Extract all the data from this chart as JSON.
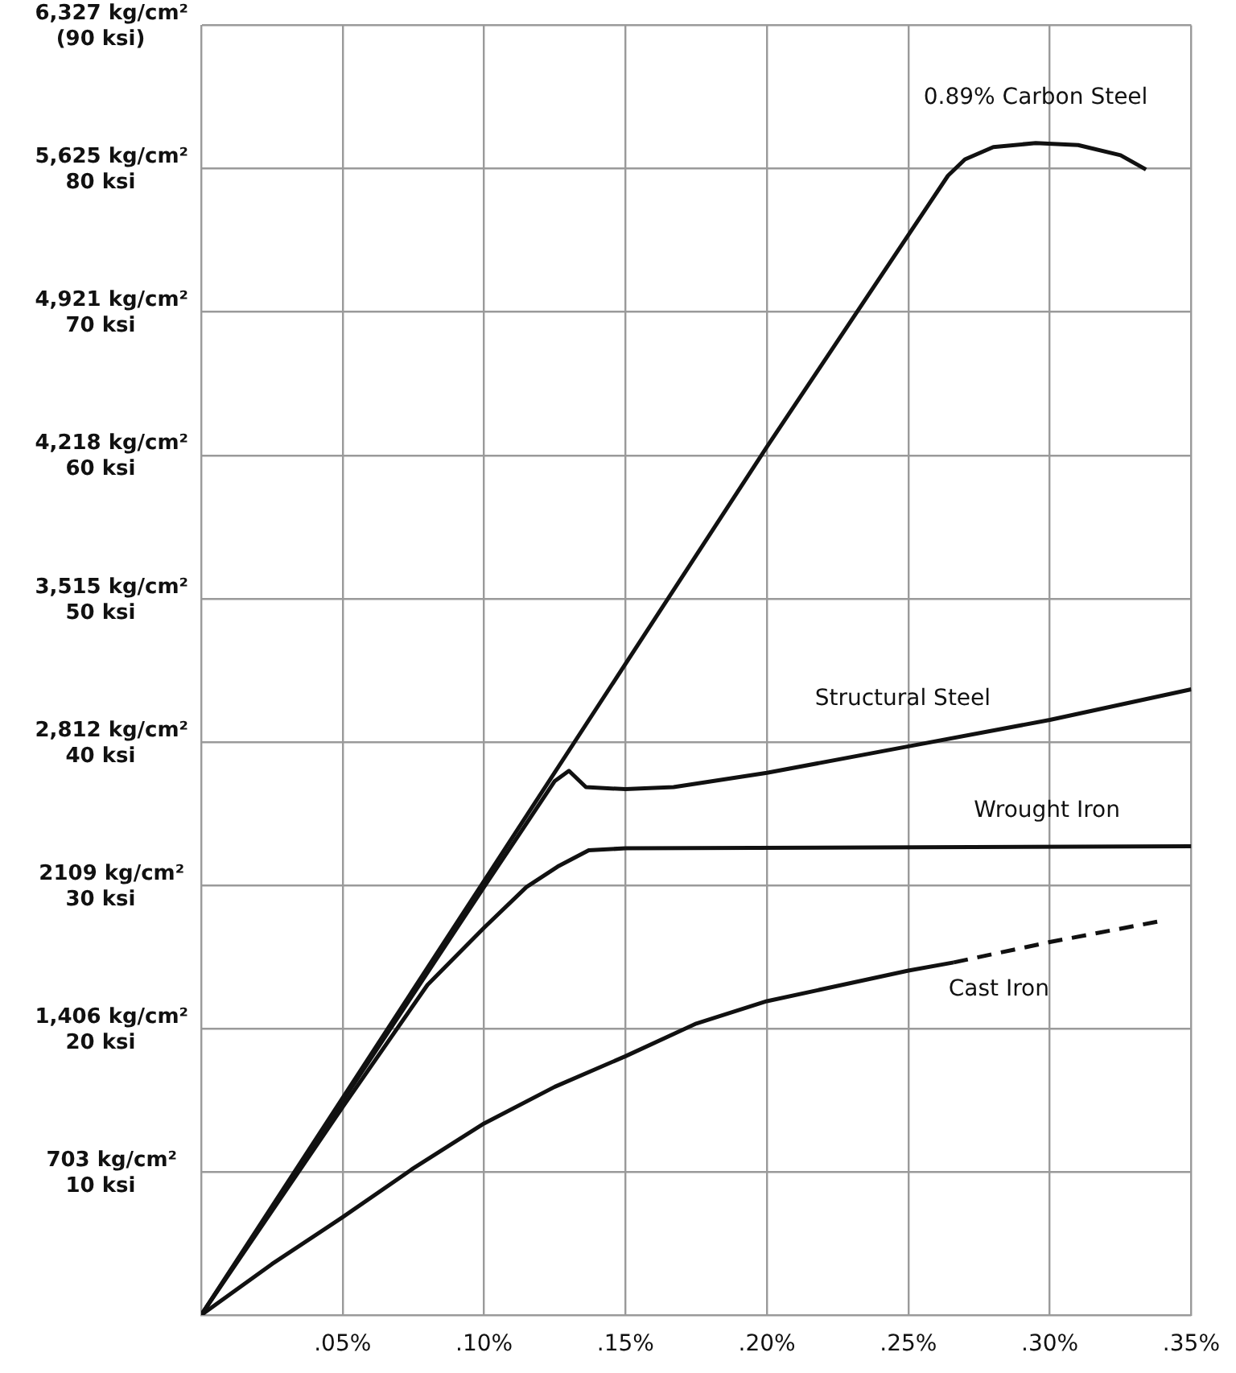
{
  "chart_data": {
    "type": "line",
    "xlim": [
      0,
      0.35
    ],
    "ylim": [
      0,
      6327
    ],
    "xticks": [
      {
        "value": 0,
        "label": null
      },
      {
        "value": 0.05,
        "label": ".05%"
      },
      {
        "value": 0.1,
        "label": ".10%"
      },
      {
        "value": 0.15,
        "label": ".15%"
      },
      {
        "value": 0.2,
        "label": ".20%"
      },
      {
        "value": 0.25,
        "label": ".25%"
      },
      {
        "value": 0.3,
        "label": ".30%"
      },
      {
        "value": 0.35,
        "label": ".35%"
      }
    ],
    "yticks": [
      {
        "value": 0,
        "label": null
      },
      {
        "value": 703,
        "label": "703 kg/cm²"
      },
      {
        "value": 1406,
        "label": "1,406 kg/cm²"
      },
      {
        "value": 2109,
        "label": "2109 kg/cm²"
      },
      {
        "value": 2812,
        "label": "2,812 kg/cm²"
      },
      {
        "value": 3515,
        "label": "3,515 kg/cm²"
      },
      {
        "value": 4218,
        "label": "4,218 kg/cm²"
      },
      {
        "value": 4921,
        "label": "4,921 kg/cm²"
      },
      {
        "value": 5625,
        "label": "5,625 kg/cm²"
      },
      {
        "value": 6327,
        "label": "6,327 kg/cm²"
      }
    ],
    "y2lim": [
      0,
      90
    ],
    "y2ticks": [
      {
        "value": 10,
        "label": "10 ksi"
      },
      {
        "value": 20,
        "label": "20 ksi"
      },
      {
        "value": 30,
        "label": "30 ksi"
      },
      {
        "value": 40,
        "label": "40 ksi"
      },
      {
        "value": 50,
        "label": "50 ksi"
      },
      {
        "value": 60,
        "label": "60 ksi"
      },
      {
        "value": 70,
        "label": "70 ksi"
      },
      {
        "value": 80,
        "label": "80 ksi"
      },
      {
        "value": 90,
        "label": "(90 ksi)"
      }
    ],
    "grid": true,
    "legend": false,
    "marker": "none",
    "series": [
      {
        "name": "0.89% Carbon Steel",
        "color": "#111111",
        "x": [
          0,
          0.1,
          0.2,
          0.264,
          0.27,
          0.28,
          0.295,
          0.31,
          0.325,
          0.334
        ],
        "values": [
          0,
          2130,
          4260,
          5590,
          5670,
          5730,
          5750,
          5740,
          5690,
          5620
        ]
      },
      {
        "name": "Structural Steel",
        "color": "#111111",
        "x": [
          0,
          0.1,
          0.125,
          0.13,
          0.136,
          0.15,
          0.167,
          0.2,
          0.25,
          0.3,
          0.35
        ],
        "values": [
          0,
          2100,
          2620,
          2670,
          2590,
          2580,
          2590,
          2660,
          2790,
          2920,
          3070
        ]
      },
      {
        "name": "Wrought Iron",
        "color": "#111111",
        "x": [
          0,
          0.05,
          0.08,
          0.1,
          0.115,
          0.126,
          0.137,
          0.15,
          0.35
        ],
        "values": [
          0,
          1020,
          1620,
          1900,
          2100,
          2200,
          2280,
          2290,
          2300
        ]
      },
      {
        "name": "Cast Iron",
        "color": "#111111",
        "x": [
          0,
          0.025,
          0.05,
          0.075,
          0.1,
          0.125,
          0.15,
          0.175,
          0.2,
          0.25,
          0.266
        ],
        "values": [
          0,
          250,
          480,
          720,
          940,
          1120,
          1270,
          1430,
          1540,
          1690,
          1730
        ]
      },
      {
        "color": "#111111",
        "line_style": "dashed",
        "x": [
          0.266,
          0.3,
          0.338
        ],
        "values": [
          1730,
          1830,
          1930
        ]
      }
    ]
  }
}
